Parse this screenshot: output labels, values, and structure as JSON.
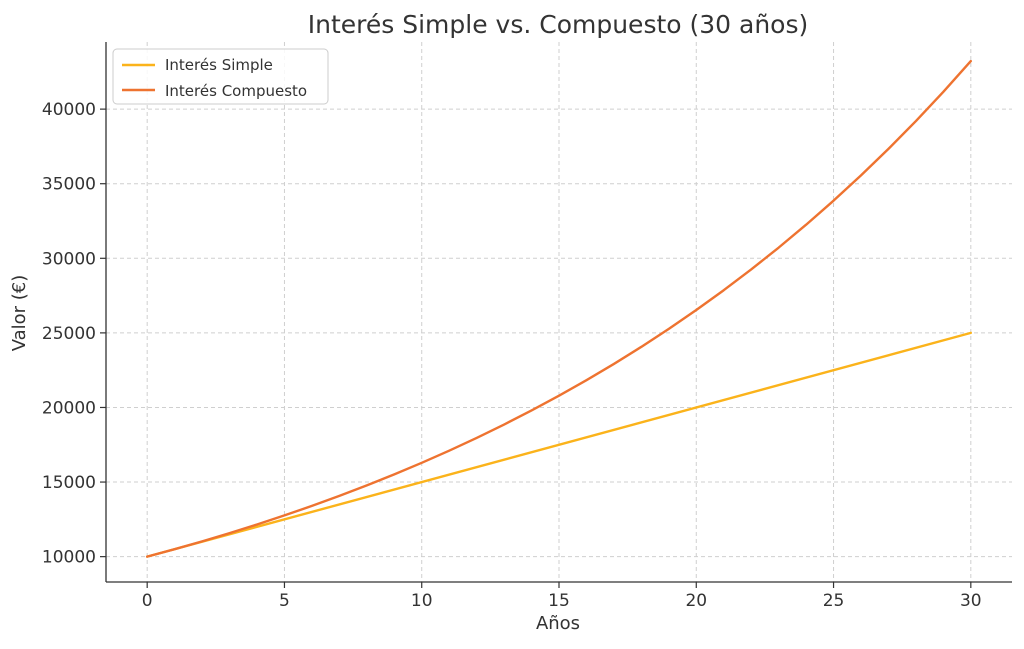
{
  "chart_data": {
    "type": "line",
    "title": "Interés Simple vs. Compuesto (30 años)",
    "xlabel": "Años",
    "ylabel": "Valor (€)",
    "xlim": [
      -1.5,
      31.5
    ],
    "ylim": [
      8300,
      44500
    ],
    "x_ticks": [
      0,
      5,
      10,
      15,
      20,
      25,
      30
    ],
    "y_ticks": [
      10000,
      15000,
      20000,
      25000,
      30000,
      35000,
      40000
    ],
    "grid": true,
    "legend_position": "top-left",
    "series": [
      {
        "name": "Interés Simple",
        "color": "#FBB31B",
        "x": [
          0,
          30
        ],
        "y": [
          10000,
          25000
        ]
      },
      {
        "name": "Interés Compuesto",
        "color": "#EE7330",
        "x": [
          0,
          1,
          2,
          3,
          4,
          5,
          6,
          7,
          8,
          9,
          10,
          11,
          12,
          13,
          14,
          15,
          16,
          17,
          18,
          19,
          20,
          21,
          22,
          23,
          24,
          25,
          26,
          27,
          28,
          29,
          30
        ],
        "y": [
          10000,
          10500,
          11025,
          11576,
          12155,
          12763,
          13401,
          14071,
          14775,
          15513,
          16289,
          17103,
          17959,
          18856,
          19799,
          20789,
          21829,
          22920,
          24066,
          25270,
          26533,
          27860,
          29253,
          30715,
          32251,
          33864,
          35557,
          37335,
          39201,
          41161,
          43219
        ]
      }
    ]
  }
}
